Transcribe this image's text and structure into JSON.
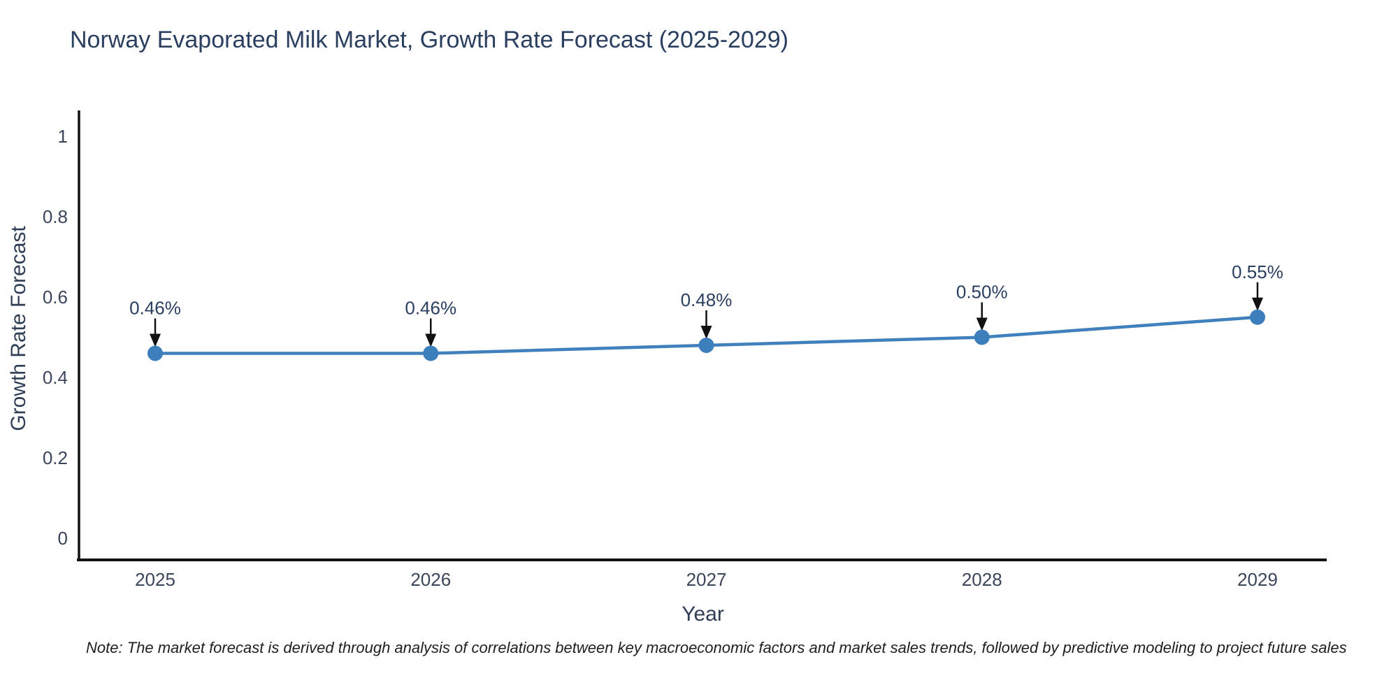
{
  "title": {
    "text": "Norway Evaporated Milk Market, Growth Rate Forecast (2025-2029)",
    "color": "#2a3f5f"
  },
  "note": {
    "text": "Note: The market forecast is derived through analysis of correlations between key macroeconomic factors and market sales trends, followed by predictive modeling to project future sales"
  },
  "chart_data": {
    "type": "line",
    "title": "Norway Evaporated Milk Market, Growth Rate Forecast (2025-2029)",
    "categories": [
      "2025",
      "2026",
      "2027",
      "2028",
      "2029"
    ],
    "series": [
      {
        "name": "Growth Rate Forecast",
        "values": [
          0.46,
          0.46,
          0.48,
          0.5,
          0.55
        ],
        "point_labels": [
          "0.46%",
          "0.46%",
          "0.48%",
          "0.50%",
          "0.55%"
        ]
      }
    ],
    "xlabel": "Year",
    "ylabel": "Growth Rate Forecast",
    "ylim": [
      0,
      1
    ],
    "yticks": [
      0,
      0.2,
      0.4,
      0.6,
      0.8,
      1
    ],
    "ytick_labels": [
      "0",
      "0.2",
      "0.4",
      "0.6",
      "0.8",
      "1"
    ],
    "grid": false,
    "legend_position": "none",
    "line_color": "#4080bd",
    "marker_color": "#3d7ebd",
    "axis_color": "#111111",
    "annotation_arrow_color": "#111111"
  }
}
